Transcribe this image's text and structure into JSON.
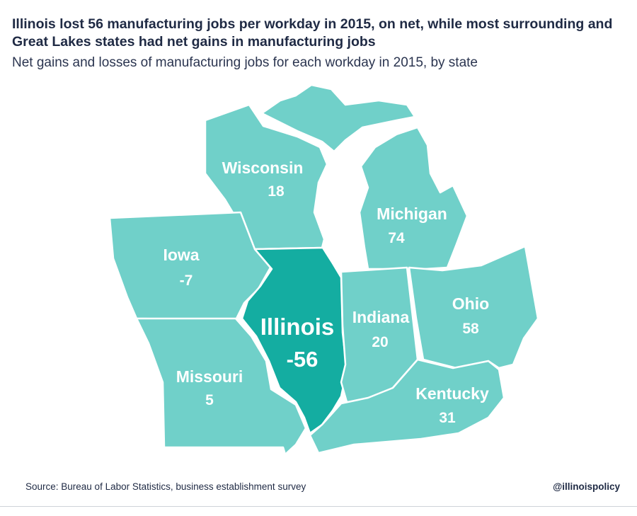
{
  "header": {
    "title": "Illinois lost 56 manufacturing jobs per workday in 2015, on net, while most surrounding and Great Lakes states had net gains in manufacturing jobs",
    "subtitle": "Net gains and losses of manufacturing jobs for each workday in 2015, by state"
  },
  "colors": {
    "highlight": "#14ada1",
    "states": "#70d0c9",
    "text": "#1f2a44"
  },
  "states": {
    "wisconsin": {
      "name": "Wisconsin",
      "value": "18"
    },
    "michigan": {
      "name": "Michigan",
      "value": "74"
    },
    "iowa": {
      "name": "Iowa",
      "value": "-7"
    },
    "illinois": {
      "name": "Illinois",
      "value": "-56"
    },
    "indiana": {
      "name": "Indiana",
      "value": "20"
    },
    "ohio": {
      "name": "Ohio",
      "value": "58"
    },
    "missouri": {
      "name": "Missouri",
      "value": "5"
    },
    "kentucky": {
      "name": "Kentucky",
      "value": "31"
    }
  },
  "footer": {
    "source": "Source: Bureau of Labor Statistics, business establishment survey",
    "handle": "@illinoispolicy"
  }
}
